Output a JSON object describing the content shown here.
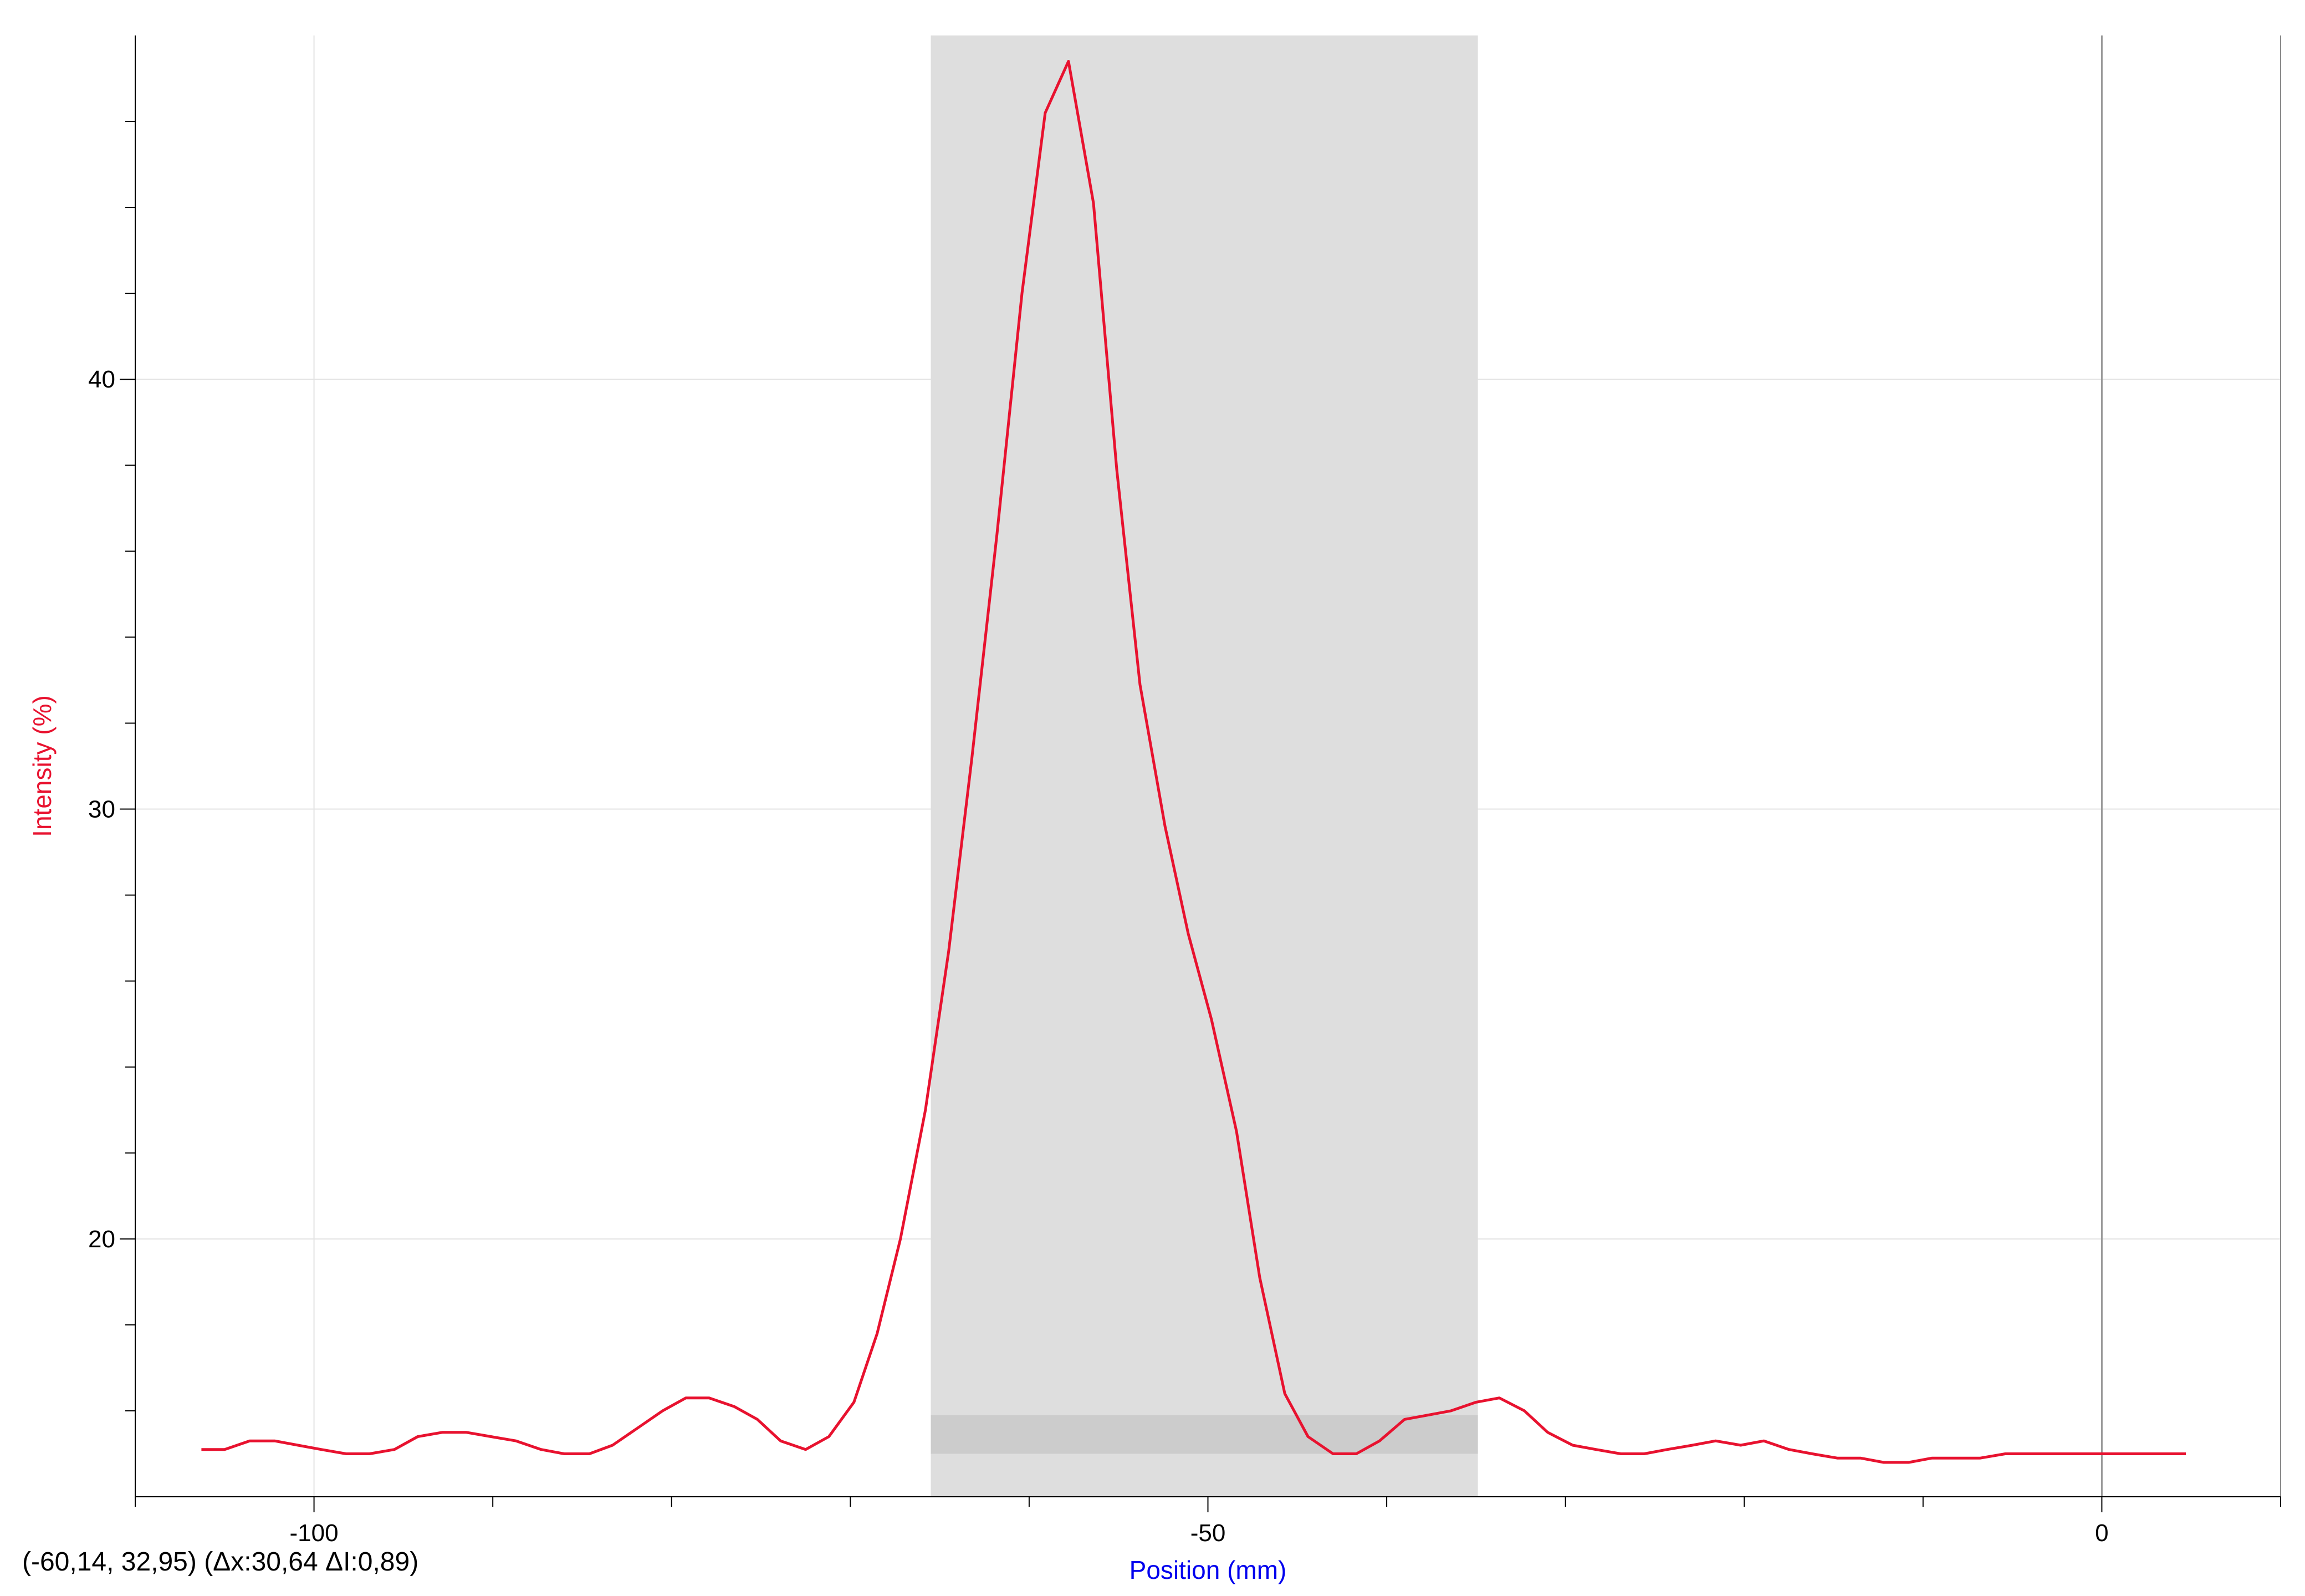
{
  "status_readout": "(-60,14, 32,95) (Δx:30,64 ΔI:0,89)",
  "colors": {
    "series": "#e8122f",
    "ylabel": "#e8122f",
    "xlabel": "#0000ee",
    "selection": "#dedede",
    "selection_band": "#cccccc",
    "grid": "#e3e3e3",
    "cursor_line": "#9a9a9a"
  },
  "chart_data": {
    "type": "line",
    "title": "",
    "xlabel": "Position (mm)",
    "ylabel": "Intensity (%)",
    "xlim": [
      -110,
      10
    ],
    "ylim": [
      14,
      48
    ],
    "x_major_ticks": [
      -100,
      -50,
      0
    ],
    "x_minor_ticks": [
      -110,
      -90,
      -80,
      -70,
      -60,
      -40,
      -30,
      -20,
      -10,
      10
    ],
    "y_major_ticks": [
      20,
      30,
      40
    ],
    "y_minor_ticks": [
      16,
      18,
      22,
      24,
      26,
      28,
      32,
      34,
      36,
      38,
      42,
      44,
      46
    ],
    "grid": true,
    "selection_region": {
      "x_range": [
        -65.5,
        -34.9
      ]
    },
    "selection_band": {
      "x_range": [
        -65.5,
        -34.9
      ],
      "y_range": [
        15.0,
        15.9
      ]
    },
    "cursor_x": 0,
    "series": [
      {
        "color": "#e8122f",
        "x": [
          -106.3,
          -105,
          -103.6,
          -102.2,
          -100.9,
          -99.6,
          -98.2,
          -96.9,
          -95.5,
          -94.2,
          -92.8,
          -91.5,
          -90.1,
          -88.7,
          -87.3,
          -86,
          -84.6,
          -83.3,
          -81.9,
          -80.5,
          -79.2,
          -77.9,
          -76.5,
          -75.2,
          -73.9,
          -72.5,
          -71.2,
          -69.8,
          -68.5,
          -67.2,
          -65.8,
          -64.5,
          -63.2,
          -61.8,
          -60.4,
          -59.1,
          -57.8,
          -56.4,
          -55.1,
          -53.8,
          -52.4,
          -51.1,
          -49.8,
          -48.4,
          -47.1,
          -45.7,
          -44.4,
          -43,
          -41.7,
          -40.4,
          -39,
          -37.7,
          -36.4,
          -35,
          -33.7,
          -32.3,
          -31,
          -29.6,
          -28.3,
          -26.9,
          -25.6,
          -24.3,
          -22.9,
          -21.6,
          -20.2,
          -18.9,
          -17.5,
          -16.2,
          -14.8,
          -13.5,
          -12.2,
          -10.8,
          -9.5,
          -8.1,
          -6.8,
          -5.4,
          -4.1,
          -2.8,
          -1.4,
          -0.1,
          1.3,
          2.6,
          4,
          4.7
        ],
        "y": [
          15.1,
          15.1,
          15.3,
          15.3,
          15.2,
          15.1,
          15.0,
          15.0,
          15.1,
          15.4,
          15.5,
          15.5,
          15.4,
          15.3,
          15.1,
          15.0,
          15.0,
          15.2,
          15.6,
          16.0,
          16.3,
          16.3,
          16.1,
          15.8,
          15.3,
          15.1,
          15.4,
          16.2,
          17.8,
          20.0,
          23.0,
          26.7,
          31.2,
          36.4,
          42.0,
          46.2,
          47.4,
          44.1,
          37.9,
          32.9,
          29.6,
          27.1,
          25.1,
          22.5,
          19.1,
          16.4,
          15.4,
          15.0,
          15.0,
          15.3,
          15.8,
          15.9,
          16.0,
          16.2,
          16.3,
          16.0,
          15.5,
          15.2,
          15.1,
          15.0,
          15.0,
          15.1,
          15.2,
          15.3,
          15.2,
          15.3,
          15.1,
          15.0,
          14.9,
          14.9,
          14.8,
          14.8,
          14.9,
          14.9,
          14.9,
          15.0,
          15.0,
          15.0,
          15.0,
          15.0,
          15.0,
          15.0,
          15.0,
          15.0
        ]
      }
    ]
  }
}
